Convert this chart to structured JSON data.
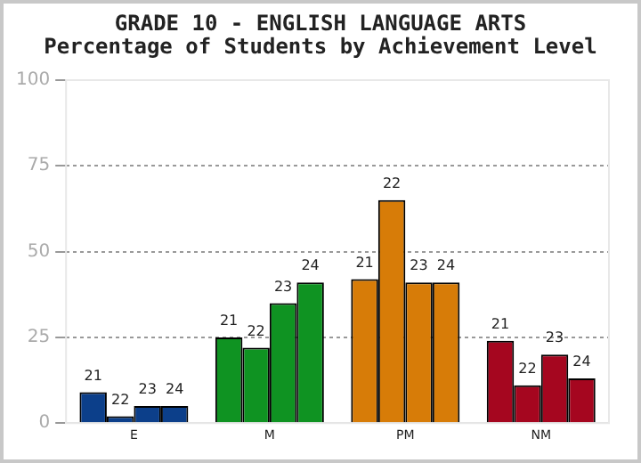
{
  "chart_data": {
    "type": "bar",
    "title": "GRADE 10 - ENGLISH LANGUAGE ARTS",
    "subtitle": "Percentage of Students by Achievement Level",
    "categories": [
      "E",
      "M",
      "PM",
      "NM"
    ],
    "series": [
      {
        "name": "21",
        "colors": [
          "#0c3f8a",
          "#0f9322",
          "#d77c08",
          "#a5061f"
        ],
        "values": [
          9,
          25,
          42,
          24
        ]
      },
      {
        "name": "22",
        "colors": [
          "#0c3f8a",
          "#0f9322",
          "#d77c08",
          "#a5061f"
        ],
        "values": [
          2,
          22,
          65,
          11
        ]
      },
      {
        "name": "23",
        "colors": [
          "#0c3f8a",
          "#0f9322",
          "#d77c08",
          "#a5061f"
        ],
        "values": [
          5,
          35,
          41,
          20
        ]
      },
      {
        "name": "24",
        "colors": [
          "#0c3f8a",
          "#0f9322",
          "#d77c08",
          "#a5061f"
        ],
        "values": [
          5,
          41,
          41,
          13
        ]
      }
    ],
    "ylim": [
      0,
      100
    ],
    "yticks": [
      0,
      25,
      50,
      75,
      100
    ],
    "grid": "y",
    "legend": false
  }
}
